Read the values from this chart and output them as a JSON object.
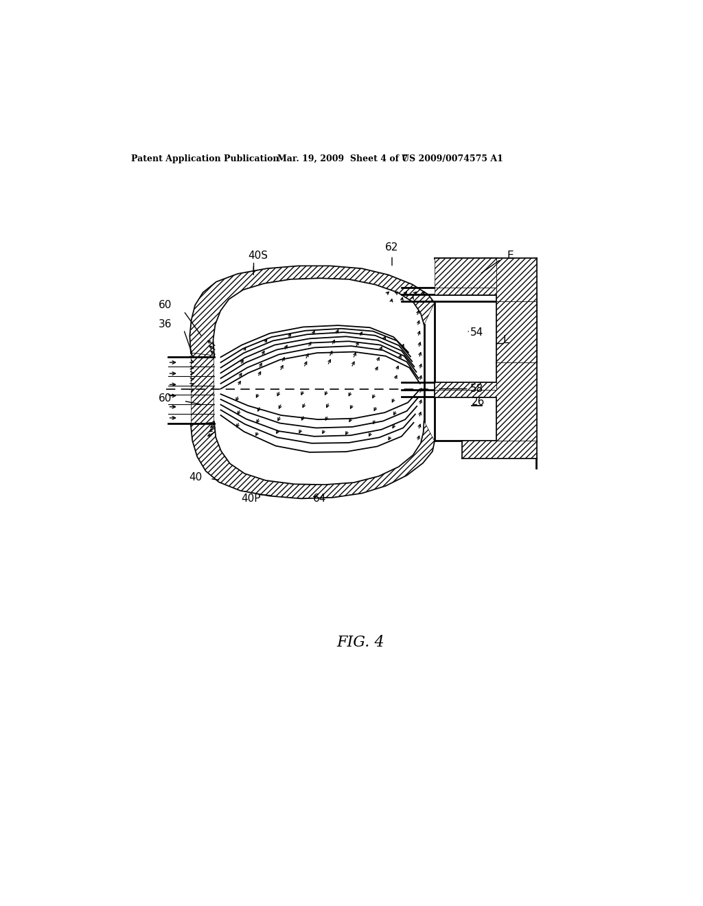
{
  "bg_color": "#ffffff",
  "line_color": "#000000",
  "header_left": "Patent Application Publication",
  "header_mid": "Mar. 19, 2009  Sheet 4 of 7",
  "header_right": "US 2009/0074575 A1",
  "figure_label": "FIG. 4"
}
